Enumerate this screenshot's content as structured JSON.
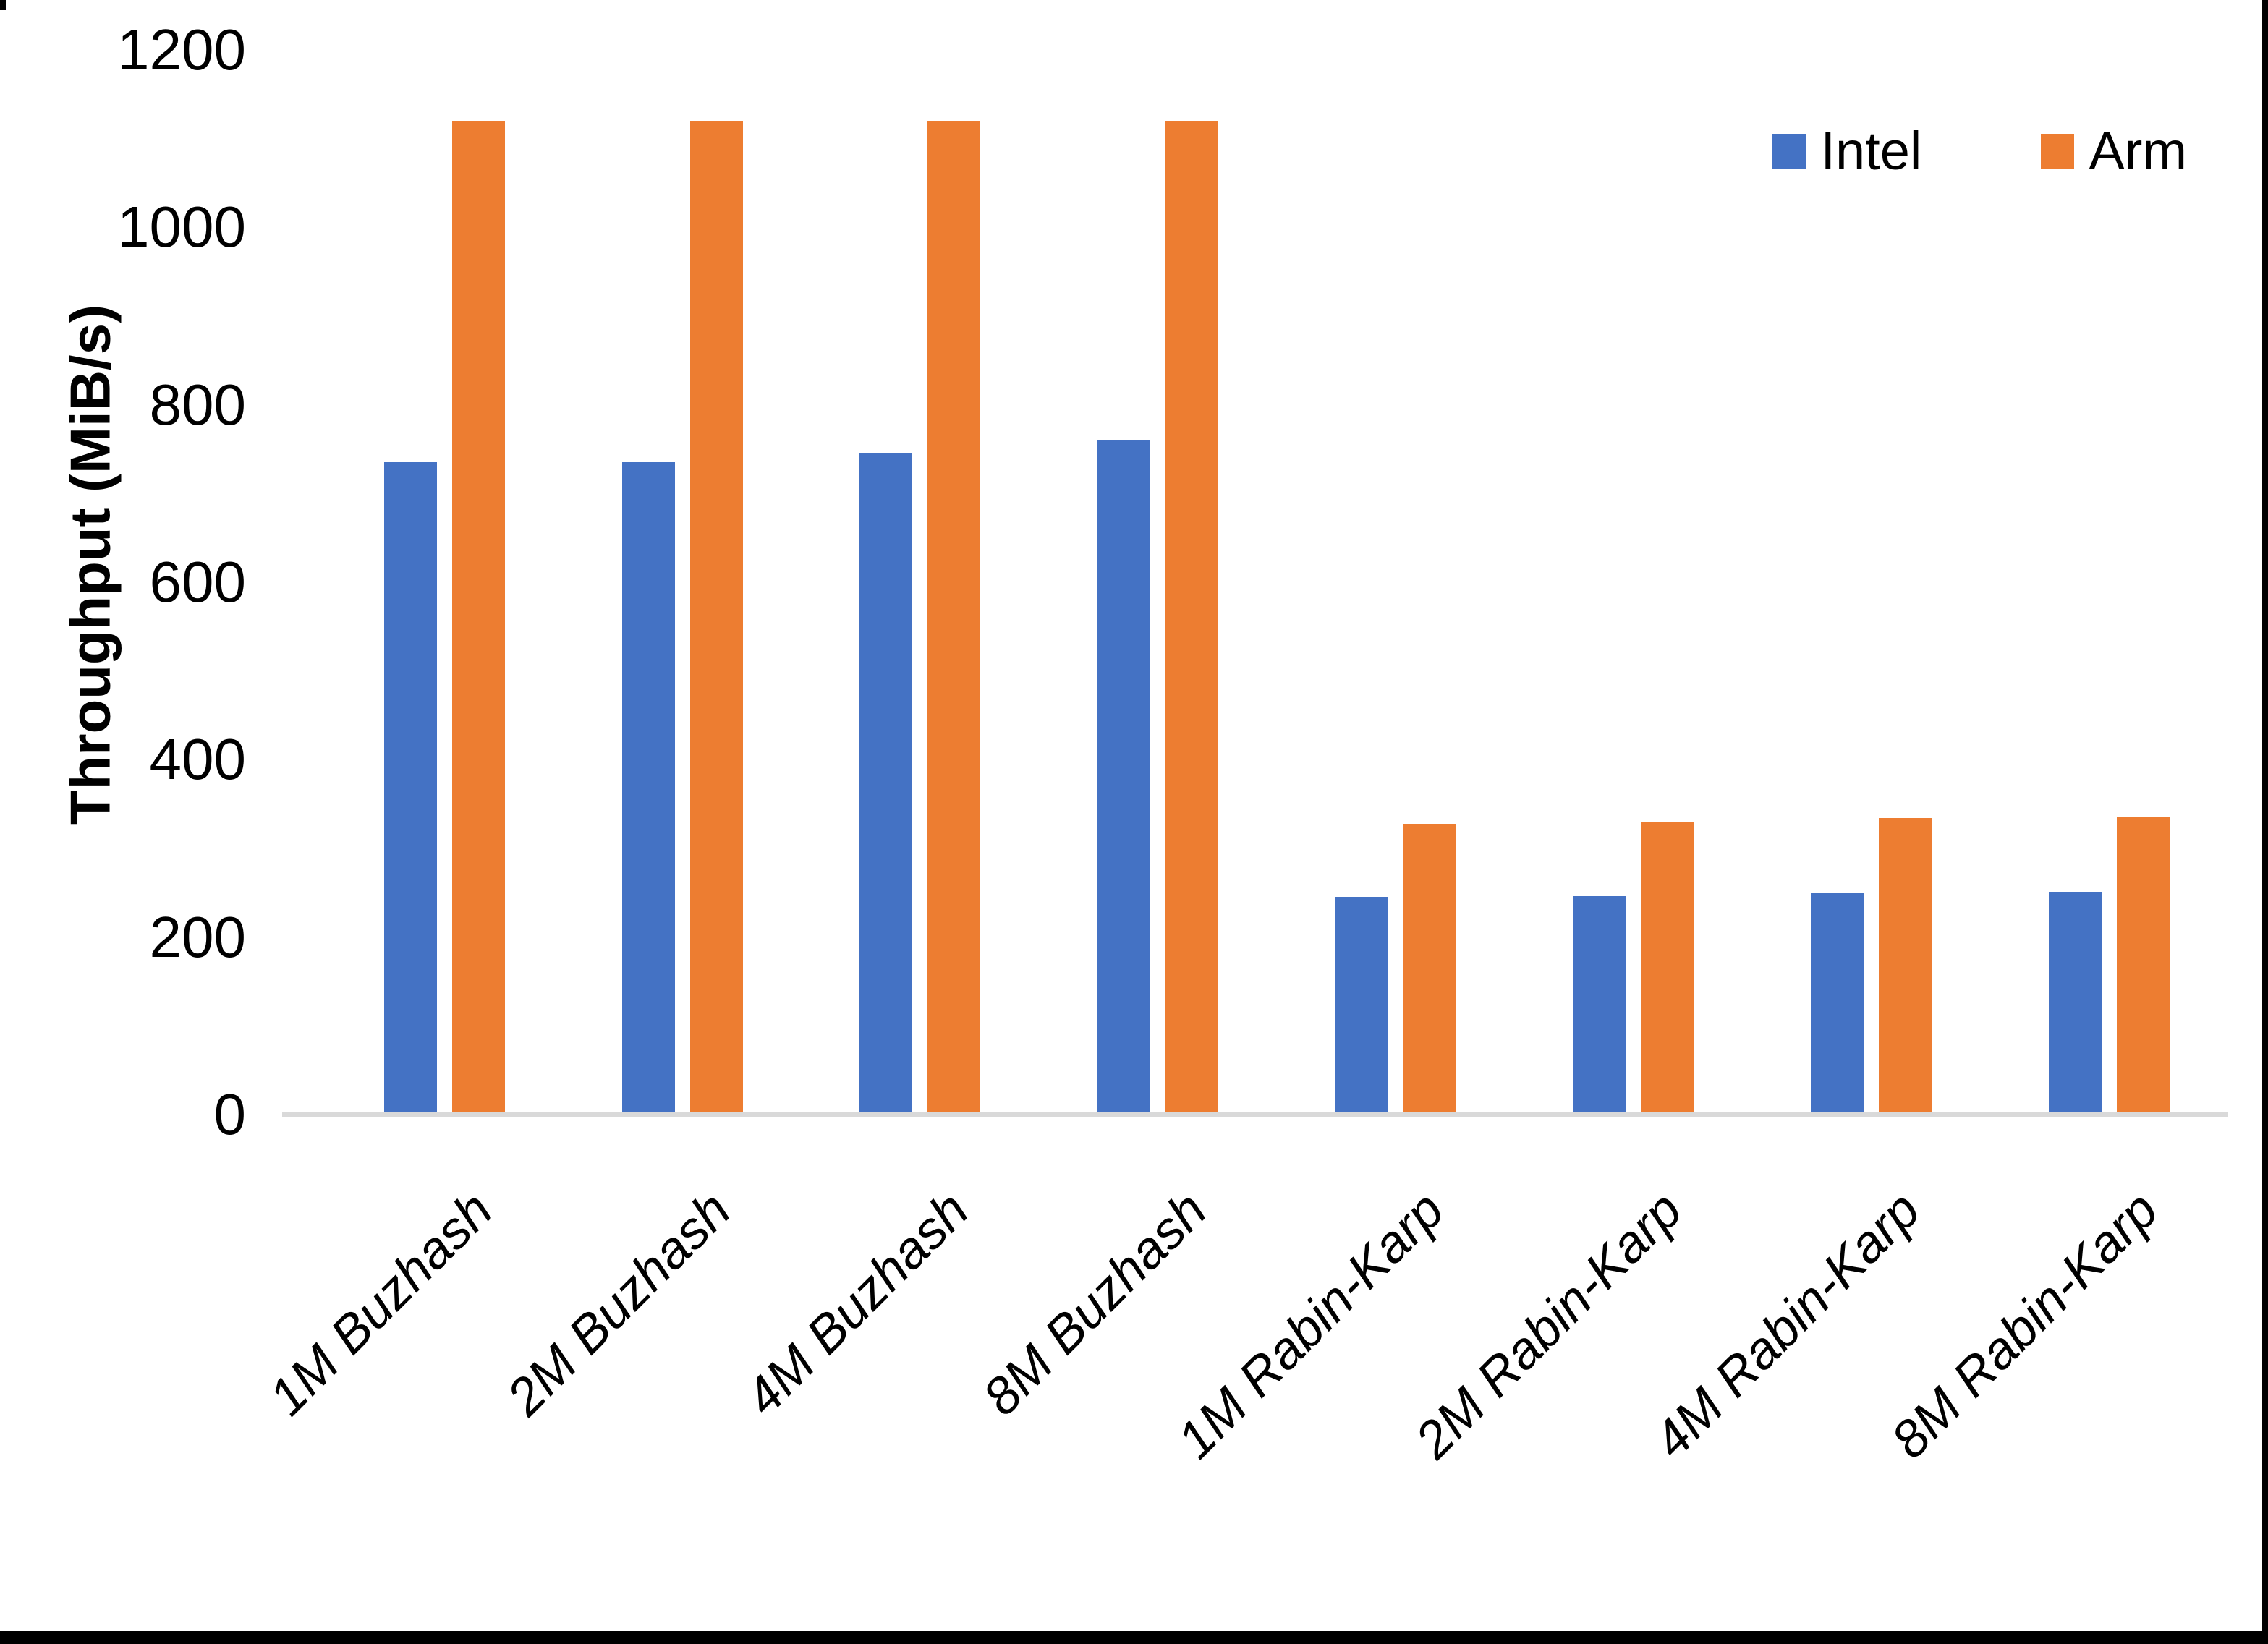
{
  "chart_data": {
    "type": "bar",
    "title": "",
    "ylabel": "Throughput (MiB/s)",
    "xlabel": "",
    "categories": [
      "1M Buzhash",
      "2M Buzhash",
      "4M Buzhash",
      "8M Buzhash",
      "1M Rabin-Karp",
      "2M Rabin-Karp",
      "4M Rabin-Karp",
      "8M Rabin-Karp"
    ],
    "series": [
      {
        "name": "Intel",
        "color": "#4472C4",
        "values": [
          735,
          735,
          745,
          760,
          245,
          246,
          250,
          251
        ]
      },
      {
        "name": "Arm",
        "color": "#ED7D31",
        "values": [
          1120,
          1120,
          1120,
          1120,
          328,
          330,
          334,
          336
        ]
      }
    ],
    "ylim": [
      0,
      1200
    ],
    "yticks": [
      0,
      200,
      400,
      600,
      800,
      1000,
      1200
    ],
    "grid": false,
    "legend_position": "top-right",
    "axis_line_color": "#D9D9D9",
    "bar_unit": "MiB/s"
  }
}
